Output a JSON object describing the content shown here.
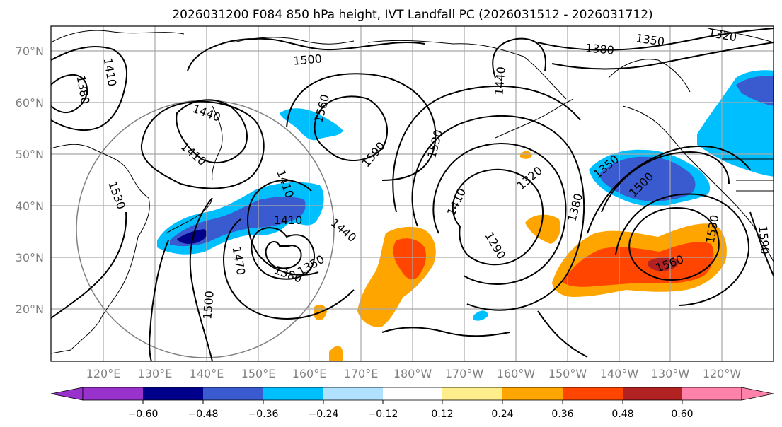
{
  "title": "2026031200 F084 850 hPa height, IVT Landfall PC (2026031512 - 2026031712)",
  "lat_labels": [
    "70°N",
    "60°N",
    "50°N",
    "40°N",
    "30°N",
    "20°N"
  ],
  "lon_labels": [
    "120°E",
    "130°E",
    "140°E",
    "150°E",
    "160°E",
    "170°E",
    "180°W",
    "170°W",
    "160°W",
    "150°W",
    "140°W",
    "130°W",
    "120°W"
  ],
  "colorbar": {
    "colors": [
      "#9932cc",
      "#00008b",
      "#3a5bcf",
      "#00bfff",
      "#b0e2ff",
      "#ffffff",
      "#ffec8b",
      "#ffa500",
      "#ff4500",
      "#b22222",
      "#ff82ab"
    ],
    "under_color": "#9932cc",
    "over_color": "#ff82ab",
    "tick_labels": [
      "−0.60",
      "−0.48",
      "−0.36",
      "−0.24",
      "−0.12",
      "0.12",
      "0.24",
      "0.36",
      "0.48",
      "0.60"
    ]
  },
  "contour_labels": [
    {
      "text": "1410"
    },
    {
      "text": "1380"
    },
    {
      "text": "1500"
    },
    {
      "text": "1380"
    },
    {
      "text": "1350"
    },
    {
      "text": "1320"
    },
    {
      "text": "1440"
    },
    {
      "text": "1410"
    },
    {
      "text": "1560"
    },
    {
      "text": "1590"
    },
    {
      "text": "1530"
    },
    {
      "text": "1440"
    },
    {
      "text": "1530"
    },
    {
      "text": "1410"
    },
    {
      "text": "1470"
    },
    {
      "text": "1500"
    },
    {
      "text": "1410"
    },
    {
      "text": "1440"
    },
    {
      "text": "1380"
    },
    {
      "text": "1350"
    },
    {
      "text": "1410"
    },
    {
      "text": "1320"
    },
    {
      "text": "1290"
    },
    {
      "text": "1380"
    },
    {
      "text": "1350"
    },
    {
      "text": "1500"
    },
    {
      "text": "1560"
    },
    {
      "text": "1530"
    },
    {
      "text": "1590"
    }
  ]
}
